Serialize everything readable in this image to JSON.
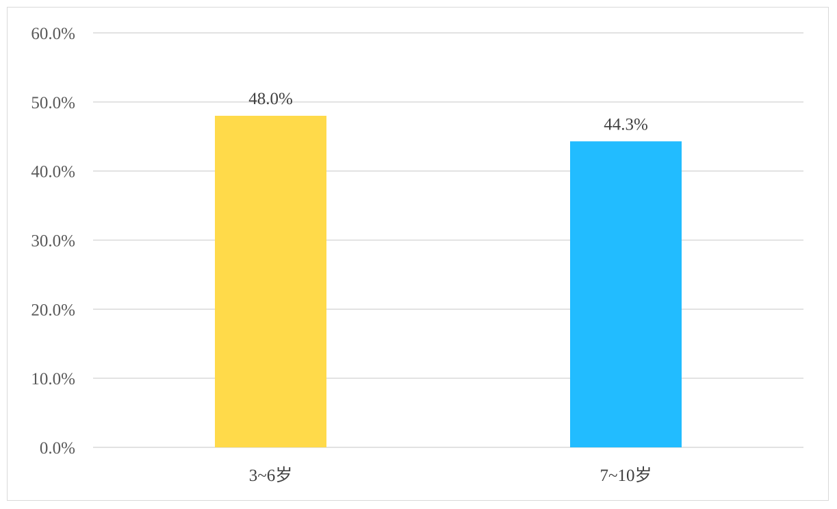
{
  "chart_data": {
    "type": "bar",
    "categories": [
      "3~6岁",
      "7~10岁"
    ],
    "values": [
      48.0,
      44.3
    ],
    "value_labels": [
      "48.0%",
      "44.3%"
    ],
    "colors": [
      "#FFDA4A",
      "#22BCFF"
    ],
    "ylim": [
      0,
      60
    ],
    "yticks": [
      0,
      10,
      20,
      30,
      40,
      50,
      60
    ],
    "ytick_labels": [
      "0.0%",
      "10.0%",
      "20.0%",
      "30.0%",
      "40.0%",
      "50.0%",
      "60.0%"
    ],
    "grid": true,
    "legend": "none"
  }
}
